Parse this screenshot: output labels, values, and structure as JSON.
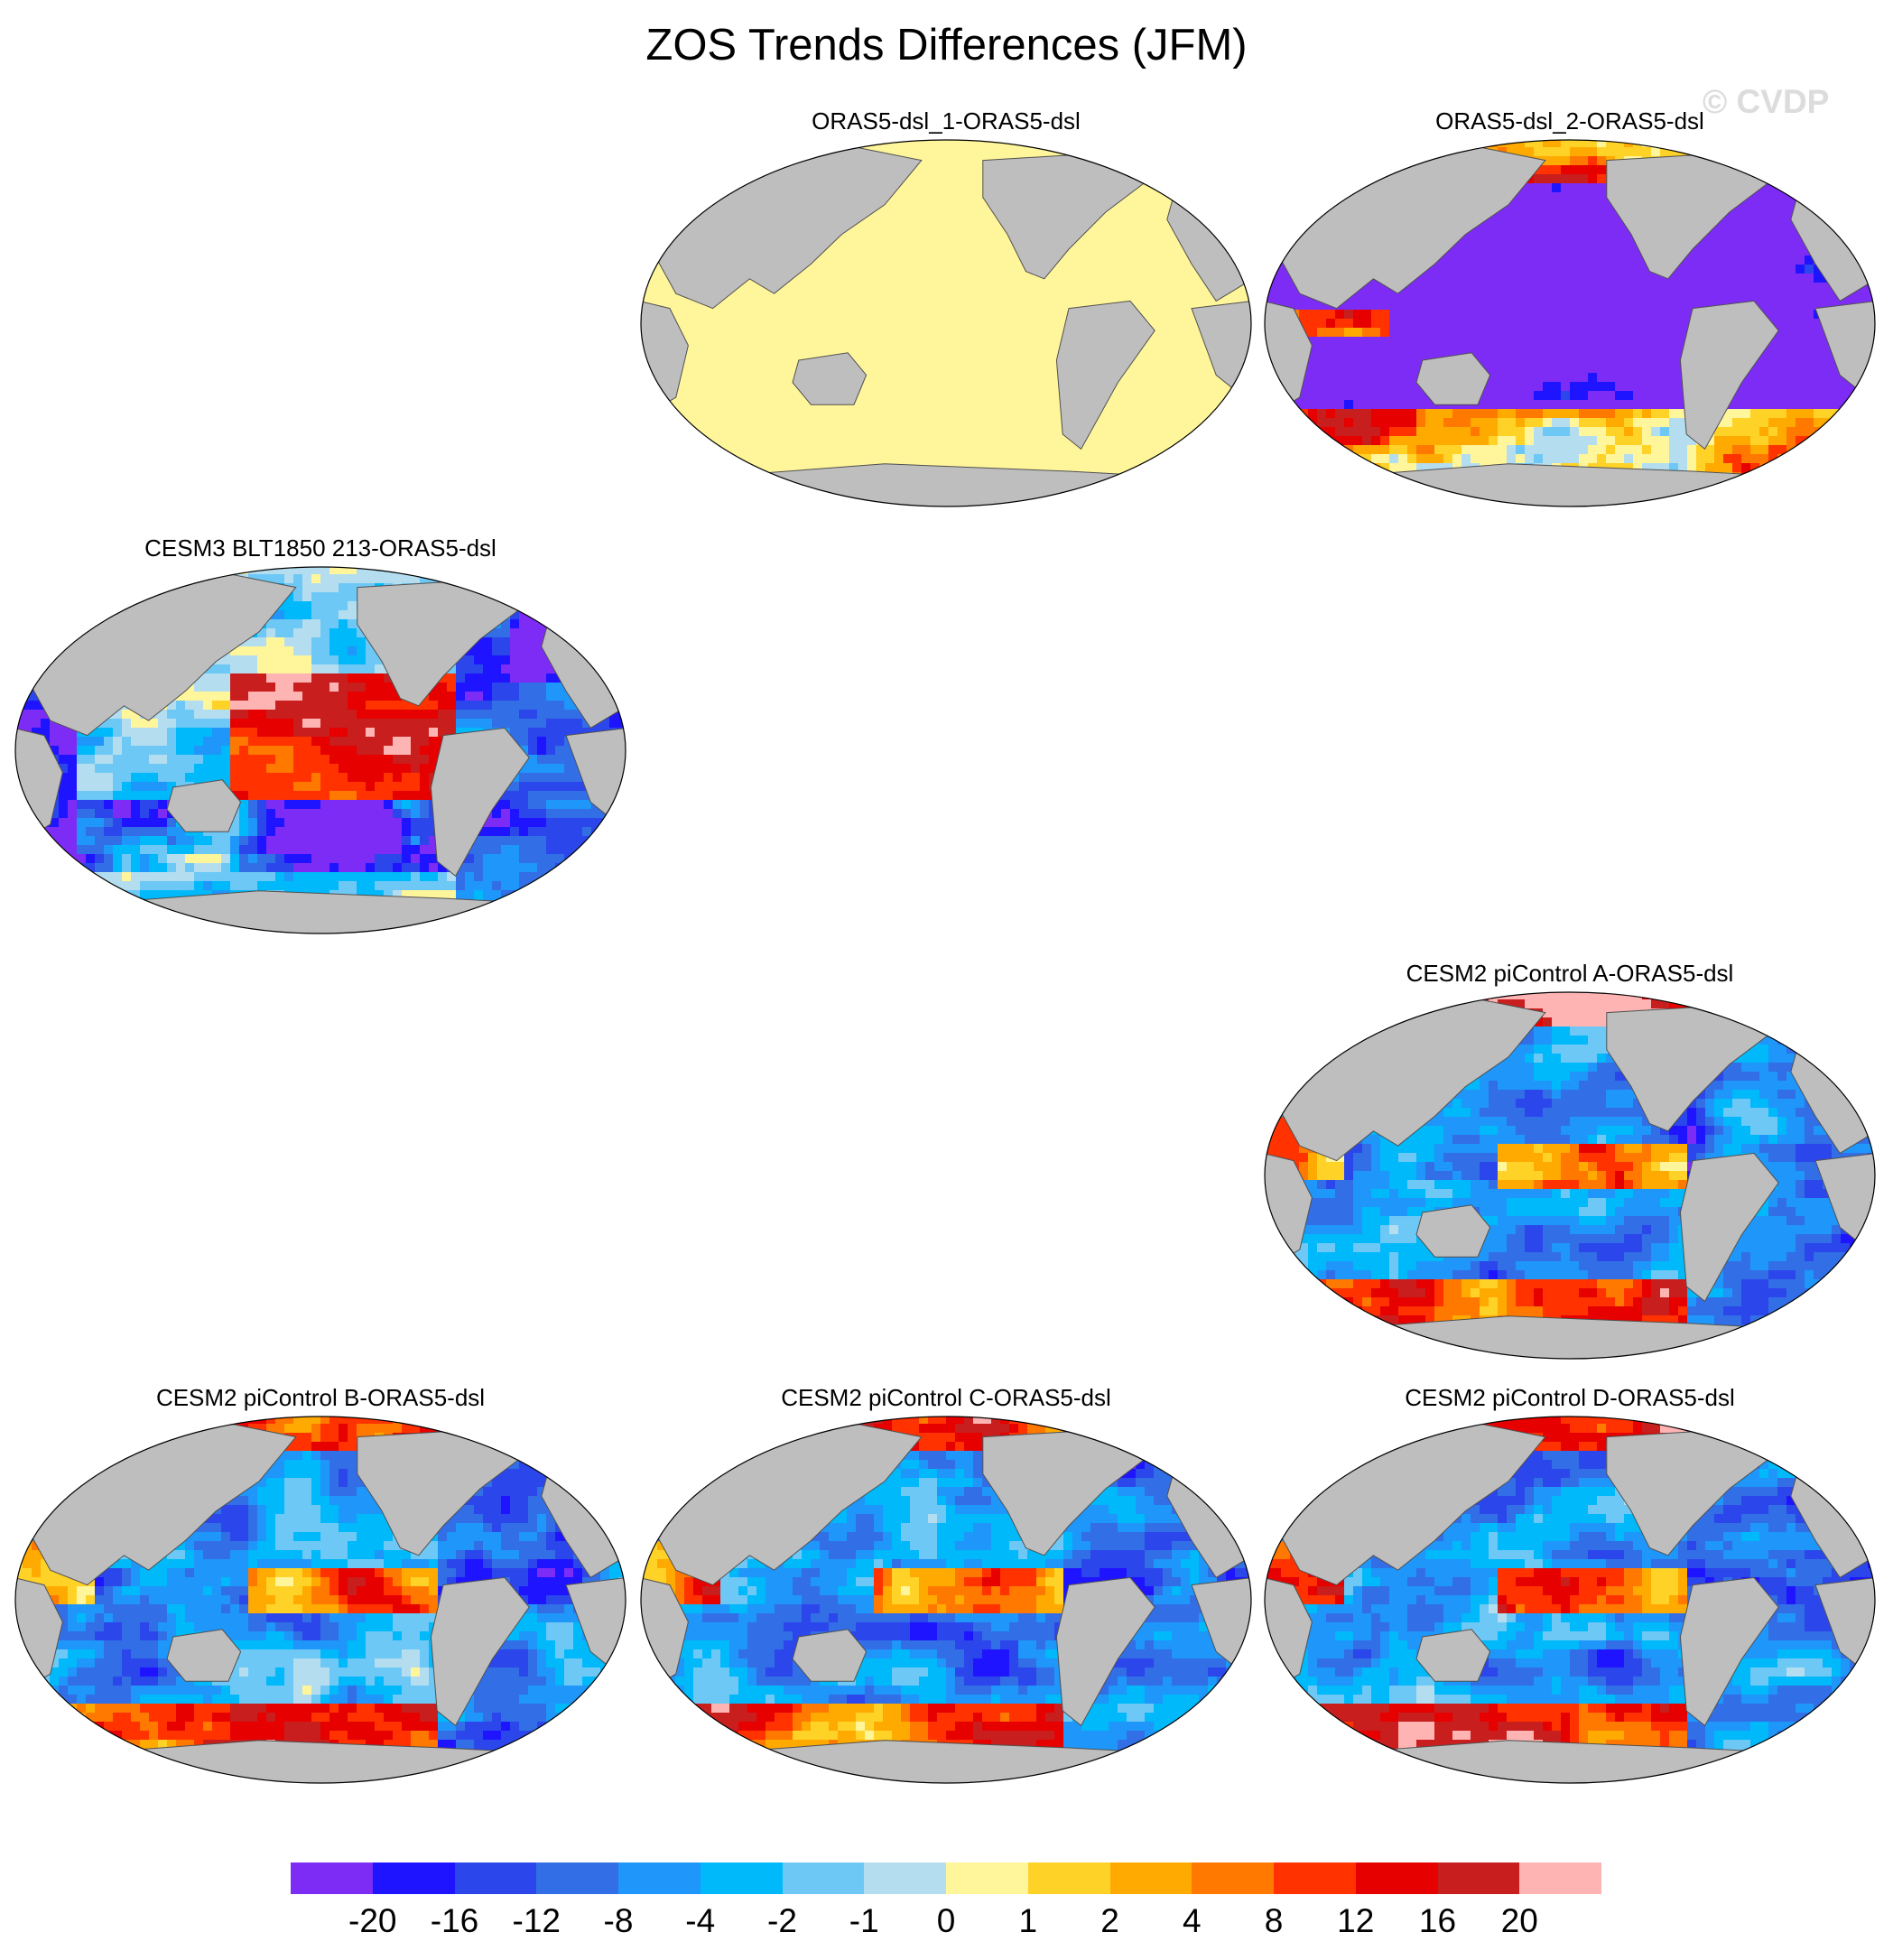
{
  "title": "ZOS Trends Differences (JFM)",
  "watermark": "© CVDP",
  "colors": {
    "land": "#bebebe",
    "coast": "#505050",
    "ice": "#ffffff"
  },
  "panels": [
    {
      "id": "orasdsl1",
      "title": "ORAS5-dsl_1-ORAS5-dsl",
      "pattern": "zero"
    },
    {
      "id": "orasdsl2",
      "title": "ORAS5-dsl_2-ORAS5-dsl",
      "pattern": "oras2"
    },
    {
      "id": "cesm3",
      "title": "CESM3 BLT1850 213-ORAS5-dsl",
      "pattern": "cesm3"
    },
    {
      "id": "cesm2a",
      "title": "CESM2 piControl A-ORAS5-dsl",
      "pattern": "cesm2"
    },
    {
      "id": "cesm2b",
      "title": "CESM2 piControl B-ORAS5-dsl",
      "pattern": "cesm2"
    },
    {
      "id": "cesm2c",
      "title": "CESM2 piControl C-ORAS5-dsl",
      "pattern": "cesm2"
    },
    {
      "id": "cesm2d",
      "title": "CESM2 piControl D-ORAS5-dsl",
      "pattern": "cesm2"
    }
  ],
  "colorbar": {
    "labels": [
      "-20",
      "-16",
      "-12",
      "-8",
      "-4",
      "-2",
      "-1",
      "0",
      "1",
      "2",
      "4",
      "8",
      "12",
      "16",
      "20"
    ],
    "colors": [
      "#7d2cf5",
      "#1e14ff",
      "#2b46eb",
      "#326ee6",
      "#1e96fa",
      "#00b9fa",
      "#6ec8f5",
      "#b4def0",
      "#fff59b",
      "#ffd228",
      "#ffaa00",
      "#ff7800",
      "#ff3200",
      "#e60000",
      "#c81e1e",
      "#ffb4b4"
    ]
  }
}
